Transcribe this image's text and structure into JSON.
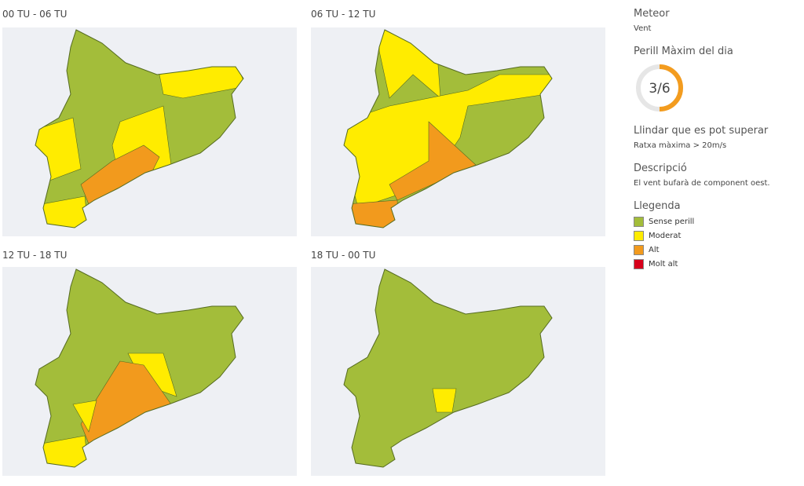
{
  "panels": [
    {
      "title": "00 TU - 06 TU"
    },
    {
      "title": "06 TU - 12 TU"
    },
    {
      "title": "12 TU - 18 TU"
    },
    {
      "title": "18 TU - 00 TU"
    }
  ],
  "sidebar": {
    "meteor_heading": "Meteor",
    "meteor": "Vent",
    "danger_heading": "Perill Màxim del dia",
    "gauge": {
      "label": "3/6",
      "value": 3,
      "max": 6,
      "color": "#f39c1f"
    },
    "threshold_heading": "Llindar que es pot superar",
    "threshold": "Ratxa màxima > 20m/s",
    "description_heading": "Descripció",
    "description": "El vent bufarà de component oest.",
    "legend_heading": "Llegenda",
    "legend": [
      {
        "label": "Sense perill",
        "color": "#a3bd3a"
      },
      {
        "label": "Moderat",
        "color": "#ffec00"
      },
      {
        "label": "Alt",
        "color": "#f29a1d"
      },
      {
        "label": "Molt alt",
        "color": "#d7001b"
      }
    ]
  }
}
